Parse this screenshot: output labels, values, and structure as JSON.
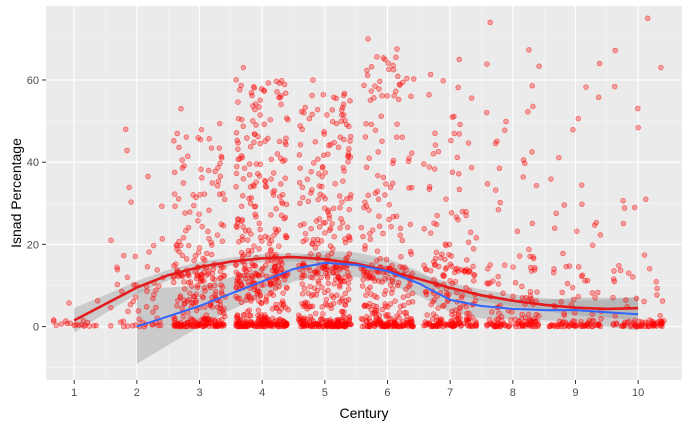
{
  "chart_data": {
    "type": "scatter",
    "xlabel": "Century",
    "ylabel": "Isnad Percentage",
    "x_ticks": [
      1,
      2,
      3,
      4,
      5,
      6,
      7,
      8,
      9,
      10
    ],
    "y_ticks": [
      0,
      20,
      40,
      60
    ],
    "xlim": [
      0.55,
      10.7
    ],
    "ylim": [
      -13,
      78
    ],
    "grid": true,
    "legend": "none",
    "colors": {
      "panel": "#ebebeb",
      "grid_major": "#ffffff",
      "points": "#ff0000",
      "red_smooth": "#e41a1c",
      "blue_smooth": "#3366ff",
      "band": "#999999"
    },
    "series": [
      {
        "kind": "jittered_points",
        "by_century": [
          {
            "century": 1,
            "n_zero": 18,
            "n_low": 2,
            "n_mid": 0,
            "max": 3
          },
          {
            "century": 2,
            "n_zero": 14,
            "n_low": 28,
            "n_mid": 14,
            "max": 48
          },
          {
            "century": 3,
            "n_zero": 80,
            "n_low": 120,
            "n_mid": 90,
            "max": 53
          },
          {
            "century": 4,
            "n_zero": 110,
            "n_low": 150,
            "n_mid": 180,
            "max": 63
          },
          {
            "century": 5,
            "n_zero": 100,
            "n_low": 130,
            "n_mid": 150,
            "max": 60
          },
          {
            "century": 6,
            "n_zero": 85,
            "n_low": 110,
            "n_mid": 100,
            "max": 70
          },
          {
            "century": 7,
            "n_zero": 70,
            "n_low": 85,
            "n_mid": 65,
            "max": 65
          },
          {
            "century": 8,
            "n_zero": 60,
            "n_low": 50,
            "n_mid": 30,
            "max": 74
          },
          {
            "century": 9,
            "n_zero": 50,
            "n_low": 30,
            "n_mid": 20,
            "max": 64
          },
          {
            "century": 10,
            "n_zero": 50,
            "n_low": 25,
            "n_mid": 12,
            "max": 75
          }
        ]
      },
      {
        "kind": "smooth",
        "color": "red",
        "x": [
          1,
          1.5,
          2,
          2.5,
          3,
          3.5,
          4,
          4.5,
          5,
          5.5,
          6,
          6.5,
          7,
          7.5,
          8,
          8.5,
          9,
          9.5,
          10
        ],
        "y": [
          1.5,
          5.5,
          9.5,
          12.5,
          14.5,
          15.8,
          16.6,
          16.9,
          16.4,
          15.3,
          13.6,
          11.6,
          9.4,
          7.6,
          6.3,
          5.3,
          4.6,
          4.3,
          4.5
        ],
        "band_half_width": [
          3,
          2.2,
          1.6,
          1.3,
          1.2,
          1.0,
          1.0,
          1.0,
          1.0,
          1.0,
          1.1,
          1.2,
          1.3,
          1.4,
          1.5,
          1.6,
          1.8,
          2.2,
          2.8
        ]
      },
      {
        "kind": "smooth",
        "color": "blue",
        "x": [
          2,
          2.5,
          3,
          3.5,
          4,
          4.5,
          5,
          5.5,
          6,
          6.5,
          7,
          7.5,
          8,
          8.5,
          9,
          9.5,
          10
        ],
        "y": [
          0,
          2.5,
          5,
          8,
          11,
          14,
          15.5,
          15,
          13.5,
          10.5,
          6.5,
          5,
          4.3,
          4,
          4,
          3.5,
          3
        ],
        "band_half_width": [
          9,
          7,
          5,
          4,
          3.5,
          3,
          3,
          3,
          3,
          3,
          3,
          3,
          2.5,
          2.5,
          3,
          3.5,
          4
        ]
      }
    ]
  }
}
